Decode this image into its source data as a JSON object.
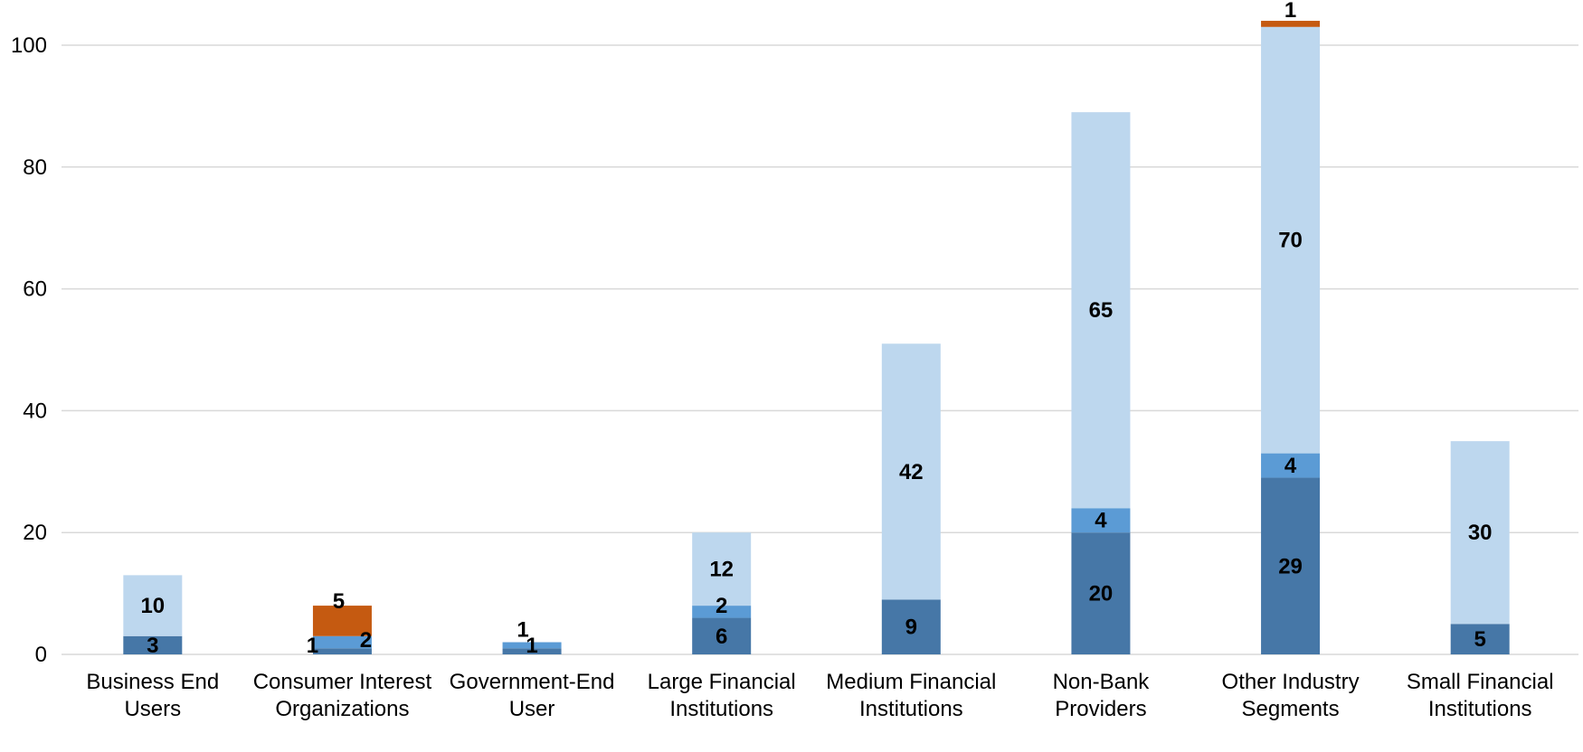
{
  "chart_data": {
    "type": "bar",
    "stacked": true,
    "title": "",
    "xlabel": "",
    "ylabel": "",
    "ylim": [
      0,
      100
    ],
    "yticks": [
      0,
      20,
      40,
      60,
      80,
      100
    ],
    "grid": true,
    "legend": "none",
    "categories": [
      "Business End Users",
      "Consumer Interest Organizations",
      "Government-End User",
      "Large Financial Institutions",
      "Medium Financial Institutions",
      "Non-Bank Providers",
      "Other Industry Segments",
      "Small Financial Institutions"
    ],
    "series": [
      {
        "color": "#4677a7",
        "values": [
          3,
          1,
          1,
          6,
          9,
          20,
          29,
          5
        ]
      },
      {
        "color": "#5b9bd5",
        "values": [
          0,
          2,
          1,
          2,
          0,
          4,
          4,
          0
        ]
      },
      {
        "color": "#bdd7ee",
        "values": [
          10,
          0,
          0,
          12,
          42,
          65,
          70,
          30
        ]
      },
      {
        "color": "#c55a11",
        "values": [
          0,
          5,
          0,
          0,
          0,
          0,
          1,
          0
        ]
      }
    ]
  }
}
